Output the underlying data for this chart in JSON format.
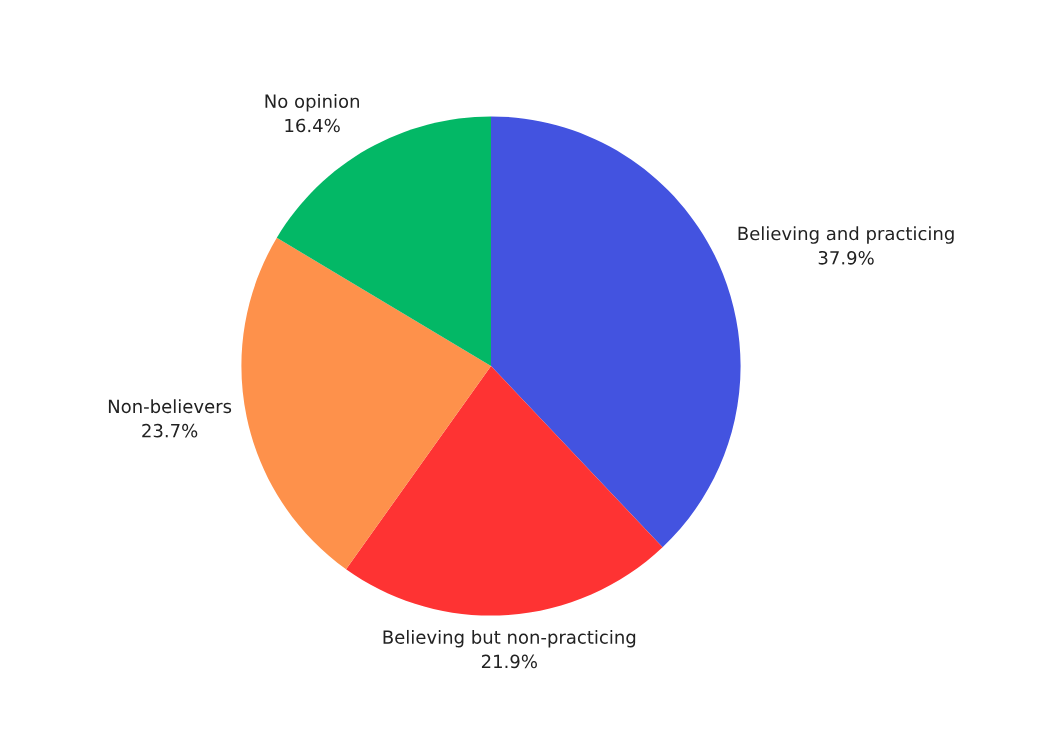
{
  "chart_data": {
    "type": "pie",
    "categories": [
      "Believing and practicing",
      "Believing but non-practicing",
      "Non-believers",
      "No opinion"
    ],
    "values": [
      37.9,
      21.9,
      23.7,
      16.4
    ],
    "colors": [
      "#4353e0",
      "#fe3333",
      "#fe914b",
      "#03b866"
    ],
    "value_labels": [
      "37.9%",
      "21.9%",
      "23.7%",
      "16.4%"
    ],
    "legend": false
  }
}
